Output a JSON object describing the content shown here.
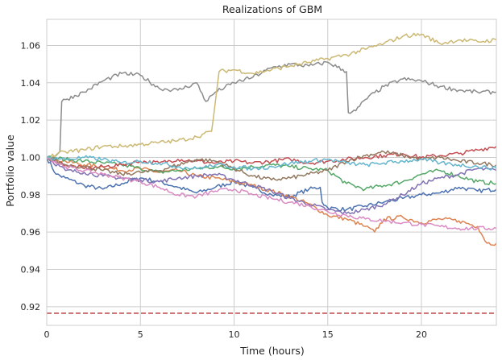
{
  "chart_data": {
    "type": "line",
    "title": "Realizations of GBM",
    "xlabel": "Time (hours)",
    "ylabel": "Portfolio value",
    "xlim": [
      0,
      24
    ],
    "ylim": [
      0.91,
      1.074
    ],
    "xticks": [
      0,
      5,
      10,
      15,
      20
    ],
    "xtick_labels": [
      "0",
      "5",
      "10",
      "15",
      "20"
    ],
    "yticks": [
      0.92,
      0.94,
      0.96,
      0.98,
      1.0,
      1.02,
      1.04,
      1.06
    ],
    "ytick_labels": [
      "0.92",
      "0.94",
      "0.96",
      "0.98",
      "1.00",
      "1.02",
      "1.04",
      "1.06"
    ],
    "grid": true,
    "legend": "none",
    "threshold": {
      "value": 0.9165,
      "style": "dashed",
      "color": "#c44e52"
    },
    "series": [
      {
        "color": "#4c72b0",
        "x": [
          0,
          0.5,
          1,
          2,
          3,
          4,
          5,
          6,
          7,
          8,
          9,
          10,
          11,
          12,
          13,
          14,
          14.6,
          14.7,
          15,
          16,
          17,
          18,
          19,
          20,
          21,
          22,
          23,
          24
        ],
        "y": [
          1.0,
          0.991,
          0.989,
          0.985,
          0.983,
          0.986,
          0.989,
          0.987,
          0.984,
          0.981,
          0.984,
          0.987,
          0.984,
          0.98,
          0.979,
          0.983,
          0.984,
          0.976,
          0.973,
          0.972,
          0.974,
          0.976,
          0.978,
          0.98,
          0.981,
          0.984,
          0.982,
          0.983
        ]
      },
      {
        "color": "#dd8452",
        "x": [
          0,
          1,
          2,
          3,
          4,
          5,
          6,
          7,
          8,
          9,
          10,
          11,
          12,
          13,
          14,
          15,
          16,
          17,
          17.5,
          18,
          19,
          20,
          21,
          22,
          23,
          23.5,
          24
        ],
        "y": [
          1.0,
          0.998,
          0.996,
          0.995,
          0.993,
          0.994,
          0.992,
          0.993,
          0.99,
          0.989,
          0.987,
          0.985,
          0.982,
          0.979,
          0.975,
          0.969,
          0.967,
          0.963,
          0.96,
          0.967,
          0.968,
          0.965,
          0.967,
          0.966,
          0.963,
          0.954,
          0.954
        ]
      },
      {
        "color": "#55a868",
        "x": [
          0,
          1,
          2,
          3,
          4,
          5,
          6,
          7,
          8,
          9,
          10,
          11,
          12,
          13,
          14,
          15,
          16,
          17,
          18,
          19,
          20,
          21,
          22,
          23,
          24
        ],
        "y": [
          1.0,
          0.999,
          0.998,
          0.997,
          0.996,
          0.994,
          0.992,
          0.993,
          0.994,
          0.995,
          0.994,
          0.995,
          0.996,
          0.995,
          0.994,
          0.993,
          0.986,
          0.983,
          0.985,
          0.987,
          0.991,
          0.993,
          0.99,
          0.987,
          0.986
        ]
      },
      {
        "color": "#c44e52",
        "x": [
          0,
          1,
          2,
          3,
          4,
          5,
          6,
          7,
          8,
          9,
          10,
          11,
          12,
          13,
          14,
          15,
          16,
          17,
          18,
          19,
          20,
          21,
          22,
          23,
          24
        ],
        "y": [
          1.0,
          0.996,
          0.994,
          0.995,
          0.996,
          0.998,
          0.997,
          0.999,
          0.998,
          0.997,
          0.998,
          0.997,
          0.998,
          0.999,
          0.997,
          0.998,
          0.999,
          1.0,
          1.001,
          1.002,
          1.0,
          1.001,
          1.002,
          1.004,
          1.006
        ]
      },
      {
        "color": "#8172b3",
        "x": [
          0,
          1,
          2,
          3,
          4,
          5,
          6,
          7,
          8,
          9,
          10,
          11,
          12,
          13,
          14,
          15,
          16,
          17,
          18,
          19,
          20,
          21,
          22,
          23,
          24
        ],
        "y": [
          1.0,
          0.993,
          0.992,
          0.99,
          0.989,
          0.988,
          0.987,
          0.989,
          0.99,
          0.991,
          0.988,
          0.985,
          0.982,
          0.978,
          0.975,
          0.972,
          0.97,
          0.972,
          0.975,
          0.98,
          0.986,
          0.989,
          0.991,
          0.994,
          0.993
        ]
      },
      {
        "color": "#937860",
        "x": [
          0,
          1,
          2,
          3,
          4,
          5,
          6,
          7,
          8,
          9,
          10,
          11,
          12,
          13,
          14,
          15,
          16,
          17,
          18,
          19,
          20,
          21,
          22,
          23,
          24
        ],
        "y": [
          1.0,
          0.996,
          0.995,
          0.993,
          0.991,
          0.992,
          0.993,
          0.996,
          0.999,
          0.998,
          0.994,
          0.99,
          0.988,
          0.989,
          0.991,
          0.993,
          0.998,
          1.001,
          1.003,
          1.001,
          0.999,
          1.0,
          0.998,
          0.997,
          0.996
        ]
      },
      {
        "color": "#da8bc3",
        "x": [
          0,
          1,
          2,
          3,
          4,
          5,
          6,
          7,
          8,
          9,
          10,
          11,
          12,
          13,
          14,
          15,
          16,
          17,
          18,
          19,
          20,
          21,
          22,
          23,
          24
        ],
        "y": [
          1.0,
          0.995,
          0.993,
          0.991,
          0.989,
          0.987,
          0.984,
          0.98,
          0.979,
          0.982,
          0.983,
          0.98,
          0.978,
          0.976,
          0.974,
          0.971,
          0.969,
          0.967,
          0.966,
          0.965,
          0.964,
          0.963,
          0.962,
          0.962,
          0.962
        ]
      },
      {
        "color": "#8c8c8c",
        "x": [
          0,
          0.5,
          0.7,
          0.8,
          1,
          2,
          3,
          4,
          5,
          6,
          7,
          8,
          8.5,
          9,
          10,
          11,
          12,
          13,
          14,
          15,
          16,
          16.1,
          16.5,
          17,
          18,
          19,
          20,
          21,
          22,
          23,
          24
        ],
        "y": [
          1.0,
          1.001,
          1.003,
          1.03,
          1.031,
          1.035,
          1.041,
          1.045,
          1.044,
          1.037,
          1.036,
          1.04,
          1.03,
          1.035,
          1.04,
          1.043,
          1.048,
          1.05,
          1.049,
          1.051,
          1.046,
          1.024,
          1.025,
          1.031,
          1.038,
          1.042,
          1.041,
          1.038,
          1.036,
          1.035,
          1.035
        ]
      },
      {
        "color": "#ccb974",
        "x": [
          0,
          1,
          2,
          3,
          4,
          5,
          6,
          7,
          8,
          8.8,
          9,
          9.2,
          10,
          11,
          12,
          13,
          14,
          15,
          16,
          17,
          18,
          19,
          20,
          21,
          22,
          23,
          24
        ],
        "y": [
          1.0,
          1.003,
          1.004,
          1.006,
          1.006,
          1.007,
          1.008,
          1.009,
          1.011,
          1.014,
          1.03,
          1.046,
          1.047,
          1.045,
          1.047,
          1.049,
          1.051,
          1.053,
          1.055,
          1.058,
          1.061,
          1.065,
          1.066,
          1.061,
          1.063,
          1.062,
          1.063
        ]
      },
      {
        "color": "#64b5cd",
        "x": [
          0,
          1,
          2,
          3,
          4,
          5,
          6,
          7,
          8,
          9,
          10,
          11,
          12,
          13,
          14,
          15,
          16,
          17,
          18,
          19,
          20,
          21,
          22,
          23,
          24
        ],
        "y": [
          1.0,
          0.999,
          1.0,
          0.999,
          0.997,
          0.998,
          0.997,
          0.995,
          0.994,
          0.996,
          0.995,
          0.994,
          0.995,
          0.997,
          0.998,
          0.999,
          0.997,
          0.996,
          0.997,
          0.998,
          0.999,
          0.997,
          0.996,
          0.995,
          0.994
        ]
      }
    ]
  }
}
